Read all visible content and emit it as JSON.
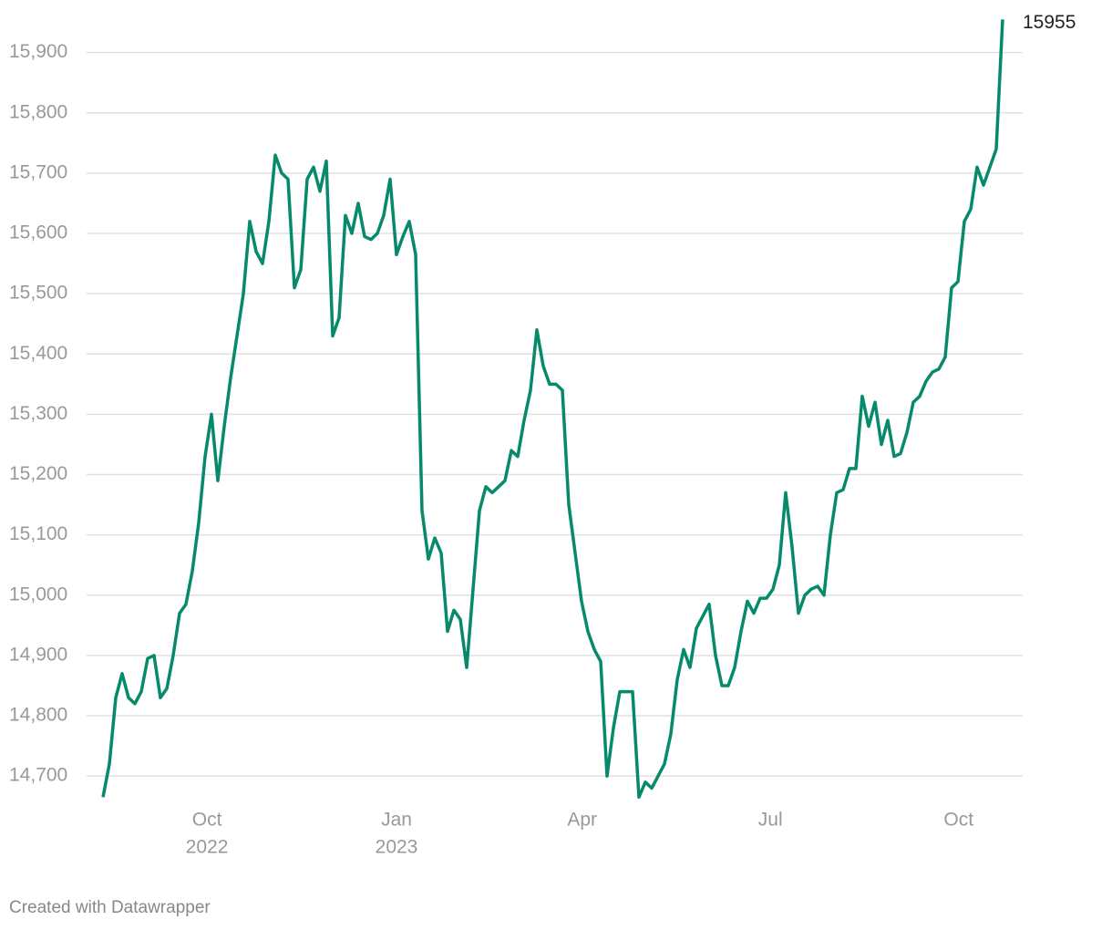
{
  "chart_data": {
    "type": "line",
    "color": "#078a6b",
    "values": [
      14665,
      14720,
      14830,
      14870,
      14830,
      14820,
      14840,
      14895,
      14900,
      14830,
      14845,
      14900,
      14970,
      14985,
      15040,
      15120,
      15230,
      15300,
      15190,
      15280,
      15360,
      15430,
      15500,
      15620,
      15570,
      15550,
      15620,
      15730,
      15700,
      15690,
      15510,
      15540,
      15690,
      15710,
      15670,
      15720,
      15430,
      15460,
      15630,
      15600,
      15650,
      15595,
      15590,
      15600,
      15630,
      15690,
      15565,
      15595,
      15620,
      15565,
      15140,
      15060,
      15095,
      15070,
      14940,
      14975,
      14960,
      14880,
      15010,
      15140,
      15180,
      15170,
      15180,
      15190,
      15240,
      15230,
      15290,
      15340,
      15440,
      15380,
      15350,
      15350,
      15340,
      15150,
      15070,
      14990,
      14940,
      14910,
      14890,
      14700,
      14780,
      14840,
      14840,
      14840,
      14665,
      14690,
      14680,
      14700,
      14720,
      14770,
      14860,
      14910,
      14880,
      14945,
      14965,
      14985,
      14900,
      14850,
      14850,
      14880,
      14940,
      14990,
      14970,
      14995,
      14995,
      15010,
      15050,
      15170,
      15080,
      14970,
      15000,
      15010,
      15015,
      15000,
      15100,
      15170,
      15175,
      15210,
      15210,
      15330,
      15280,
      15320,
      15250,
      15290,
      15230,
      15235,
      15270,
      15320,
      15330,
      15355,
      15370,
      15375,
      15395,
      15510,
      15520,
      15620,
      15640,
      15710,
      15680,
      15710,
      15740,
      15955
    ],
    "xlim": [
      0,
      141
    ],
    "xticks": [
      {
        "value": 16.3,
        "label": [
          "Oct",
          "2022"
        ]
      },
      {
        "value": 46,
        "label": [
          "Jan",
          "2023"
        ]
      },
      {
        "value": 75.1,
        "label": [
          "Apr"
        ]
      },
      {
        "value": 104.6,
        "label": [
          "Jul"
        ]
      },
      {
        "value": 134.1,
        "label": [
          "Oct"
        ]
      }
    ],
    "ylim": [
      14670,
      15960
    ],
    "yticks": [
      {
        "value": 14700,
        "label": "14,700"
      },
      {
        "value": 14800,
        "label": "14,800"
      },
      {
        "value": 14900,
        "label": "14,900"
      },
      {
        "value": 15000,
        "label": "15,000"
      },
      {
        "value": 15100,
        "label": "15,100"
      },
      {
        "value": 15200,
        "label": "15,200"
      },
      {
        "value": 15300,
        "label": "15,300"
      },
      {
        "value": 15400,
        "label": "15,400"
      },
      {
        "value": 15500,
        "label": "15,500"
      },
      {
        "value": 15600,
        "label": "15,600"
      },
      {
        "value": 15700,
        "label": "15,700"
      },
      {
        "value": 15800,
        "label": "15,800"
      },
      {
        "value": 15900,
        "label": "15,900"
      }
    ],
    "grid": true,
    "source": "Created with Datawrapper"
  }
}
